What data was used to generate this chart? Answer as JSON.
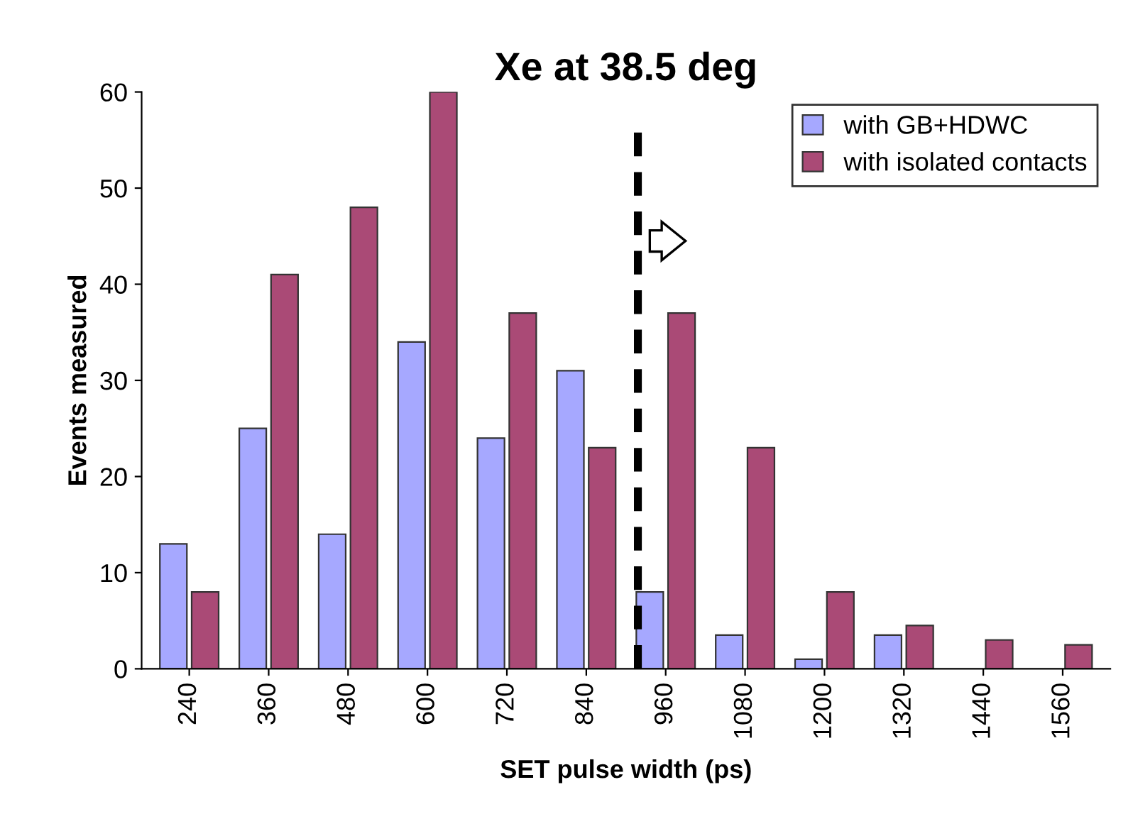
{
  "chart_data": {
    "type": "bar",
    "title": "Xe at 38.5 deg",
    "xlabel": "SET pulse width (ps)",
    "ylabel": "Events measured",
    "categories": [
      "240",
      "360",
      "480",
      "600",
      "720",
      "840",
      "960",
      "1080",
      "1200",
      "1320",
      "1440",
      "1560"
    ],
    "series": [
      {
        "name": "with GB+HDWC",
        "color": "#a6a8ff",
        "values": [
          13,
          25,
          14,
          34,
          24,
          31,
          8,
          3.5,
          1,
          3.5,
          null,
          null
        ]
      },
      {
        "name": "with isolated contacts",
        "color": "#aa4a76",
        "values": [
          8,
          41,
          48,
          60,
          37,
          23,
          37,
          23,
          8,
          4.5,
          3,
          2.5
        ]
      }
    ],
    "ylim": [
      0,
      60
    ],
    "yticks": [
      0,
      10,
      20,
      30,
      40,
      50,
      60
    ],
    "grid": false,
    "legend": "top right",
    "ref_lines": [
      {
        "axis": "x",
        "value": "960",
        "color": "#000000",
        "line_style": "dashed"
      }
    ]
  }
}
